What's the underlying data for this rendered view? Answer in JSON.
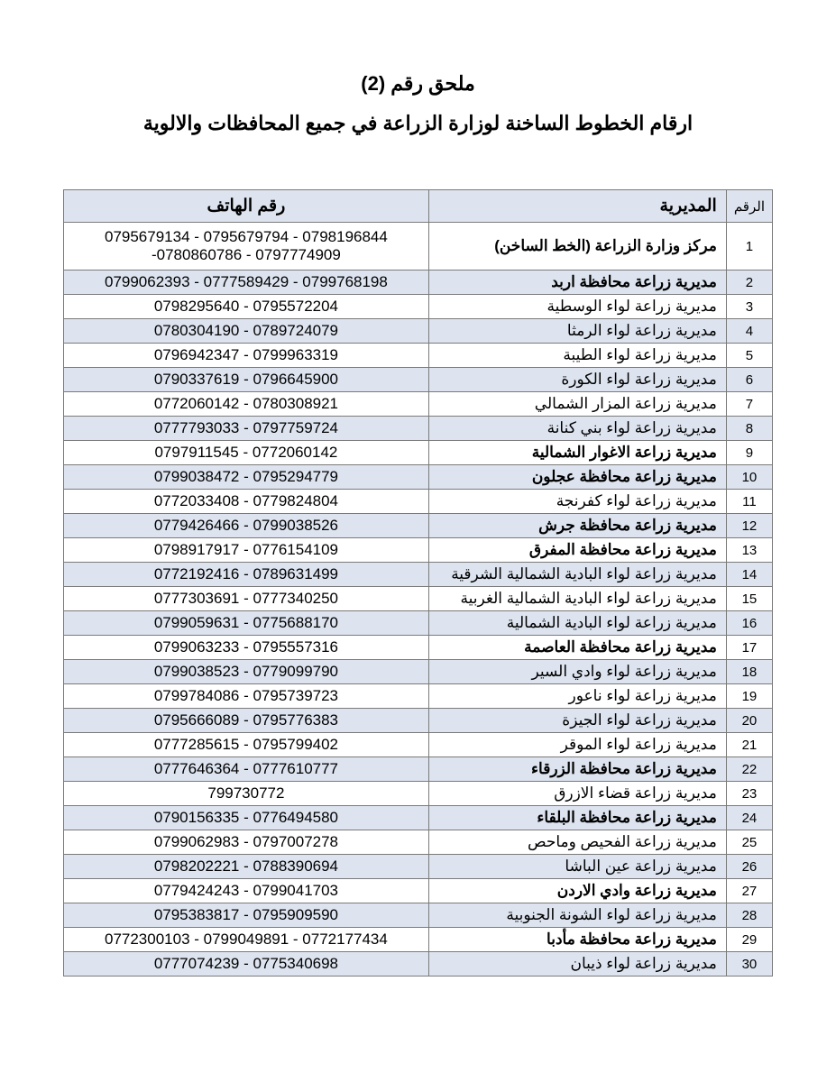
{
  "title": "ملحق رقم (2)",
  "subtitle": "ارقام الخطوط الساخنة لوزارة الزراعة في جميع المحافظات والالوية",
  "headers": {
    "num": "الرقم",
    "directorate": "المديرية",
    "phone": "رقم الهاتف"
  },
  "rows": [
    {
      "n": "1",
      "dir": "مركز وزارة الزراعة (الخط الساخن)",
      "phone": "0795679134 - 0795679794 - 0798196844 -0780860786 - 0797774909",
      "bold": true,
      "shaded": false
    },
    {
      "n": "2",
      "dir": "مديرية زراعة محافظة اربد",
      "phone": "0799062393 - 0777589429 - 0799768198",
      "bold": true,
      "shaded": true
    },
    {
      "n": "3",
      "dir": "مديرية زراعة لواء الوسطية",
      "phone": "0798295640 - 0795572204",
      "bold": false,
      "shaded": false
    },
    {
      "n": "4",
      "dir": "مديرية زراعة لواء الرمثا",
      "phone": "0780304190 - 0789724079",
      "bold": false,
      "shaded": true
    },
    {
      "n": "5",
      "dir": "مديرية زراعة لواء الطيبة",
      "phone": "0796942347 - 0799963319",
      "bold": false,
      "shaded": false
    },
    {
      "n": "6",
      "dir": "مديرية زراعة لواء الكورة",
      "phone": "0790337619 - 0796645900",
      "bold": false,
      "shaded": true
    },
    {
      "n": "7",
      "dir": "مديرية زراعة المزار الشمالي",
      "phone": "0772060142 - 0780308921",
      "bold": false,
      "shaded": false
    },
    {
      "n": "8",
      "dir": "مديرية زراعة لواء بني كنانة",
      "phone": "0777793033 - 0797759724",
      "bold": false,
      "shaded": true
    },
    {
      "n": "9",
      "dir": "مديرية زراعة الاغوار الشمالية",
      "phone": "0797911545 - 0772060142",
      "bold": true,
      "shaded": false
    },
    {
      "n": "10",
      "dir": "مديرية زراعة محافظة عجلون",
      "phone": "0799038472 - 0795294779",
      "bold": true,
      "shaded": true
    },
    {
      "n": "11",
      "dir": "مديرية زراعة لواء كفرنجة",
      "phone": "0772033408 - 0779824804",
      "bold": false,
      "shaded": false
    },
    {
      "n": "12",
      "dir": "مديرية زراعة محافظة جرش",
      "phone": "0779426466 - 0799038526",
      "bold": true,
      "shaded": true
    },
    {
      "n": "13",
      "dir": "مديرية زراعة محافظة المفرق",
      "phone": "0798917917 - 0776154109",
      "bold": true,
      "shaded": false
    },
    {
      "n": "14",
      "dir": "مديرية زراعة لواء البادية الشمالية الشرقية",
      "phone": "0772192416 - 0789631499",
      "bold": false,
      "shaded": true
    },
    {
      "n": "15",
      "dir": "مديرية زراعة لواء البادية الشمالية الغربية",
      "phone": "0777303691 - 0777340250",
      "bold": false,
      "shaded": false
    },
    {
      "n": "16",
      "dir": "مديرية زراعة لواء البادية الشمالية",
      "phone": "0799059631 - 0775688170",
      "bold": false,
      "shaded": true
    },
    {
      "n": "17",
      "dir": "مديرية زراعة محافظة العاصمة",
      "phone": "0799063233 - 0795557316",
      "bold": true,
      "shaded": false
    },
    {
      "n": "18",
      "dir": "مديرية زراعة لواء وادي السير",
      "phone": "0799038523 - 0779099790",
      "bold": false,
      "shaded": true
    },
    {
      "n": "19",
      "dir": "مديرية زراعة لواء ناعور",
      "phone": "0799784086 - 0795739723",
      "bold": false,
      "shaded": false
    },
    {
      "n": "20",
      "dir": "مديرية زراعة لواء الجيزة",
      "phone": "0795666089 - 0795776383",
      "bold": false,
      "shaded": true
    },
    {
      "n": "21",
      "dir": "مديرية زراعة لواء الموقر",
      "phone": "0777285615 - 0795799402",
      "bold": false,
      "shaded": false
    },
    {
      "n": "22",
      "dir": "مديرية زراعة محافظة الزرقاء",
      "phone": "0777646364 - 0777610777",
      "bold": true,
      "shaded": true
    },
    {
      "n": "23",
      "dir": "مديرية زراعة قضاء الازرق",
      "phone": "799730772",
      "bold": false,
      "shaded": false
    },
    {
      "n": "24",
      "dir": "مديرية زراعة محافظة البلقاء",
      "phone": "0790156335 - 0776494580",
      "bold": true,
      "shaded": true
    },
    {
      "n": "25",
      "dir": "مديرية زراعة الفحيص وماحص",
      "phone": "0799062983 - 0797007278",
      "bold": false,
      "shaded": false
    },
    {
      "n": "26",
      "dir": "مديرية زراعة عين الباشا",
      "phone": "0798202221 - 0788390694",
      "bold": false,
      "shaded": true
    },
    {
      "n": "27",
      "dir": "مديرية زراعة وادي الاردن",
      "phone": "0779424243 - 0799041703",
      "bold": true,
      "shaded": false
    },
    {
      "n": "28",
      "dir": "مديرية زراعة لواء الشونة الجنوبية",
      "phone": "0795383817 - 0795909590",
      "bold": false,
      "shaded": true
    },
    {
      "n": "29",
      "dir": "مديرية زراعة محافظة مأدبا",
      "phone": "0772300103 - 0799049891 - 0772177434",
      "bold": true,
      "shaded": false
    },
    {
      "n": "30",
      "dir": "مديرية زراعة لواء ذيبان",
      "phone": "0777074239 - 0775340698",
      "bold": false,
      "shaded": true
    }
  ],
  "style": {
    "header_bg": "#dde4ef",
    "border_color": "#7a7a7a",
    "background_color": "#ffffff",
    "title_fontsize": 22,
    "cell_fontsize": 17
  }
}
